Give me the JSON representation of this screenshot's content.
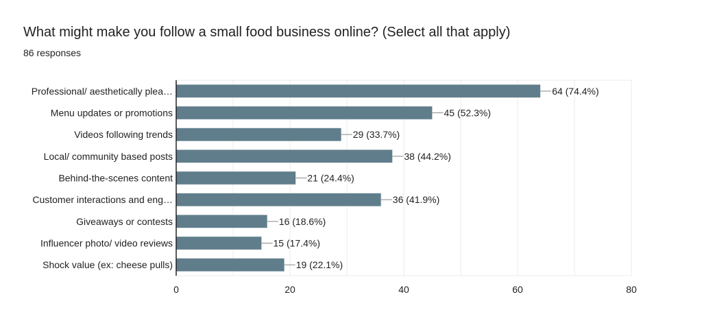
{
  "title": "What might make you follow a small food business online? (Select all that apply)",
  "subtitle": "86 responses",
  "chart_data": {
    "type": "bar",
    "orientation": "horizontal",
    "categories": [
      "Professional/ aesthetically plea…",
      "Menu updates or promotions",
      "Videos following trends",
      "Local/ community based posts",
      "Behind-the-scenes content",
      "Customer interactions and eng…",
      "Giveaways or contests",
      "Influencer photo/ video reviews",
      "Shock value (ex: cheese pulls)"
    ],
    "values": [
      64,
      45,
      29,
      38,
      21,
      36,
      16,
      15,
      19
    ],
    "data_labels": [
      "64 (74.4%)",
      "45 (52.3%)",
      "29 (33.7%)",
      "38 (44.2%)",
      "21 (24.4%)",
      "36 (41.9%)",
      "16 (18.6%)",
      "15 (17.4%)",
      "19 (22.1%)"
    ],
    "xlim": [
      0,
      80
    ],
    "xticks": [
      0,
      20,
      40,
      60,
      80
    ],
    "grid": true,
    "bar_color": "#607d8b"
  }
}
